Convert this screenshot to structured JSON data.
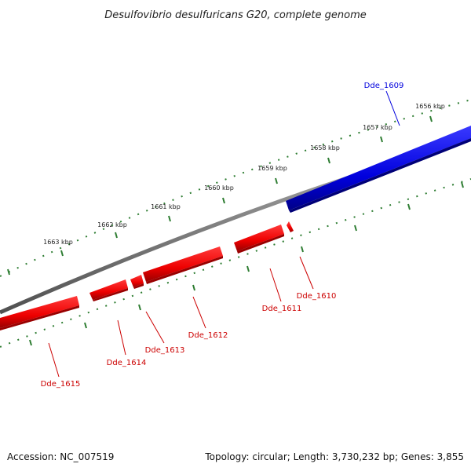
{
  "title": "Desulfovibrio desulfuricans G20, complete genome",
  "footer": {
    "accession": "Accession: NC_007519",
    "info": "Topology: circular; Length: 3,730,232 bp; Genes: 3,855"
  },
  "colors": {
    "forward_gene": "#0000dd",
    "reverse_gene": "#ee0000",
    "backbone": "#808080",
    "ticks": "#2e7d32"
  },
  "scale_labels": [
    "1656 kbp",
    "1657 kbp",
    "1658 kbp",
    "1659 kbp",
    "1660 kbp",
    "1661 kbp",
    "1662 kbp",
    "1663 kbp"
  ],
  "genes": [
    {
      "name": "Dde_1609",
      "strand": "forward"
    },
    {
      "name": "Dde_1610",
      "strand": "reverse"
    },
    {
      "name": "Dde_1611",
      "strand": "reverse"
    },
    {
      "name": "Dde_1612",
      "strand": "reverse"
    },
    {
      "name": "Dde_1613",
      "strand": "reverse"
    },
    {
      "name": "Dde_1614",
      "strand": "reverse"
    },
    {
      "name": "Dde_1615",
      "strand": "reverse"
    }
  ]
}
